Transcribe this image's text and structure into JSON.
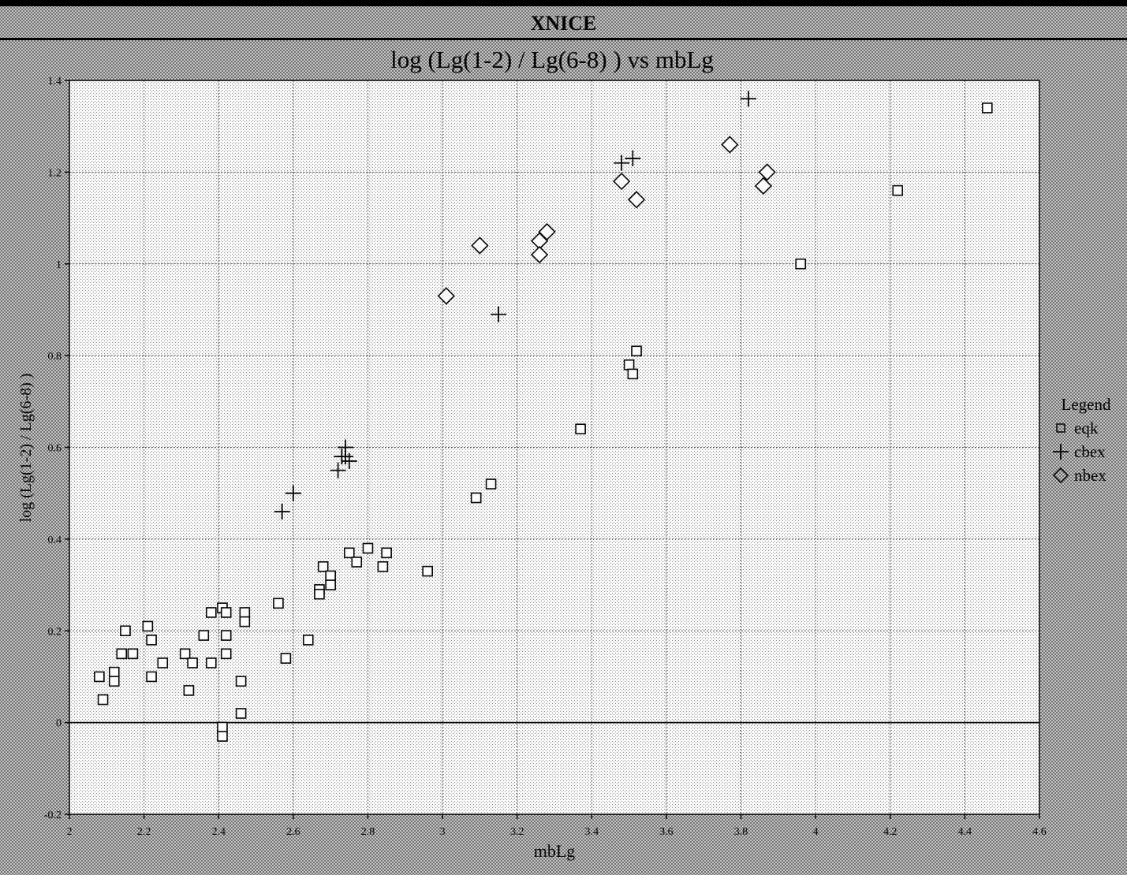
{
  "window": {
    "title": "XNICE"
  },
  "chart_data": {
    "type": "scatter",
    "title": "log (Lg(1-2) / Lg(6-8) ) vs mbLg",
    "xlabel": "mbLg",
    "ylabel": "log (Lg(1-2) / Lg(6-8) )",
    "xlim": [
      2.0,
      4.6
    ],
    "ylim": [
      -0.2,
      1.4
    ],
    "xticks": [
      "2",
      "2.2",
      "2.4",
      "2.6",
      "2.8",
      "3",
      "3.2",
      "3.4",
      "3.6",
      "3.8",
      "4",
      "4.2",
      "4.4",
      "4.6"
    ],
    "yticks": [
      "-0.2",
      "0",
      "0.2",
      "0.4",
      "0.6",
      "0.8",
      "1",
      "1.2",
      "1.4"
    ],
    "grid": true,
    "legend_title": "Legend",
    "legend_position": "right",
    "series": [
      {
        "name": "eqk",
        "marker": "square",
        "points": [
          [
            2.08,
            0.1
          ],
          [
            2.09,
            0.05
          ],
          [
            2.12,
            0.11
          ],
          [
            2.12,
            0.09
          ],
          [
            2.14,
            0.15
          ],
          [
            2.15,
            0.2
          ],
          [
            2.17,
            0.15
          ],
          [
            2.21,
            0.21
          ],
          [
            2.22,
            0.18
          ],
          [
            2.22,
            0.1
          ],
          [
            2.25,
            0.13
          ],
          [
            2.31,
            0.15
          ],
          [
            2.32,
            0.07
          ],
          [
            2.33,
            0.13
          ],
          [
            2.36,
            0.19
          ],
          [
            2.38,
            0.24
          ],
          [
            2.38,
            0.13
          ],
          [
            2.41,
            0.25
          ],
          [
            2.41,
            -0.01
          ],
          [
            2.41,
            -0.03
          ],
          [
            2.42,
            0.24
          ],
          [
            2.42,
            0.19
          ],
          [
            2.42,
            0.15
          ],
          [
            2.46,
            0.09
          ],
          [
            2.46,
            0.02
          ],
          [
            2.47,
            0.24
          ],
          [
            2.47,
            0.22
          ],
          [
            2.56,
            0.26
          ],
          [
            2.58,
            0.14
          ],
          [
            2.64,
            0.18
          ],
          [
            2.67,
            0.29
          ],
          [
            2.67,
            0.28
          ],
          [
            2.68,
            0.34
          ],
          [
            2.7,
            0.32
          ],
          [
            2.7,
            0.3
          ],
          [
            2.75,
            0.37
          ],
          [
            2.77,
            0.35
          ],
          [
            2.8,
            0.38
          ],
          [
            2.84,
            0.34
          ],
          [
            2.85,
            0.37
          ],
          [
            2.96,
            0.33
          ],
          [
            3.09,
            0.49
          ],
          [
            3.13,
            0.52
          ],
          [
            3.37,
            0.64
          ],
          [
            3.5,
            0.78
          ],
          [
            3.51,
            0.76
          ],
          [
            3.52,
            0.81
          ],
          [
            3.96,
            1.0
          ],
          [
            4.22,
            1.16
          ],
          [
            4.46,
            1.34
          ]
        ]
      },
      {
        "name": "cbex",
        "marker": "plus",
        "points": [
          [
            2.57,
            0.46
          ],
          [
            2.6,
            0.5
          ],
          [
            2.72,
            0.55
          ],
          [
            2.73,
            0.58
          ],
          [
            2.74,
            0.6
          ],
          [
            2.74,
            0.58
          ],
          [
            2.75,
            0.57
          ],
          [
            3.15,
            0.89
          ],
          [
            3.48,
            1.22
          ],
          [
            3.51,
            1.23
          ],
          [
            3.82,
            1.36
          ]
        ]
      },
      {
        "name": "nbex",
        "marker": "diamond",
        "points": [
          [
            3.01,
            0.93
          ],
          [
            3.1,
            1.04
          ],
          [
            3.26,
            1.05
          ],
          [
            3.26,
            1.02
          ],
          [
            3.28,
            1.07
          ],
          [
            3.48,
            1.18
          ],
          [
            3.52,
            1.14
          ],
          [
            3.77,
            1.26
          ],
          [
            3.86,
            1.17
          ],
          [
            3.87,
            1.2
          ]
        ]
      }
    ]
  }
}
